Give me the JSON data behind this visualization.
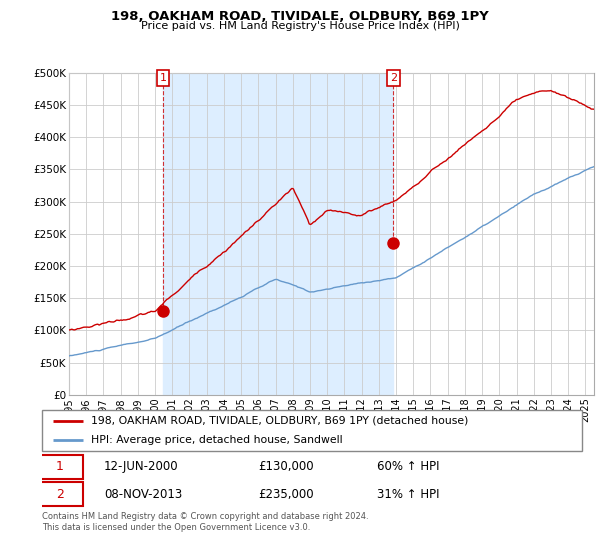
{
  "title": "198, OAKHAM ROAD, TIVIDALE, OLDBURY, B69 1PY",
  "subtitle": "Price paid vs. HM Land Registry's House Price Index (HPI)",
  "legend_line1": "198, OAKHAM ROAD, TIVIDALE, OLDBURY, B69 1PY (detached house)",
  "legend_line2": "HPI: Average price, detached house, Sandwell",
  "annotation1_date": "12-JUN-2000",
  "annotation1_price": "£130,000",
  "annotation1_hpi": "60% ↑ HPI",
  "annotation2_date": "08-NOV-2013",
  "annotation2_price": "£235,000",
  "annotation2_hpi": "31% ↑ HPI",
  "footer": "Contains HM Land Registry data © Crown copyright and database right 2024.\nThis data is licensed under the Open Government Licence v3.0.",
  "red_color": "#cc0000",
  "blue_color": "#6699cc",
  "shade_color": "#ddeeff",
  "grid_color": "#cccccc",
  "ylim": [
    0,
    500000
  ],
  "yticks": [
    0,
    50000,
    100000,
    150000,
    200000,
    250000,
    300000,
    350000,
    400000,
    450000,
    500000
  ],
  "ytick_labels": [
    "£0",
    "£50K",
    "£100K",
    "£150K",
    "£200K",
    "£250K",
    "£300K",
    "£350K",
    "£400K",
    "£450K",
    "£500K"
  ],
  "ann1_year": 2000.46,
  "ann2_year": 2013.84,
  "ann1_marker_y": 130000,
  "ann2_marker_y": 235000,
  "xmin": 1995.0,
  "xmax": 2025.5
}
